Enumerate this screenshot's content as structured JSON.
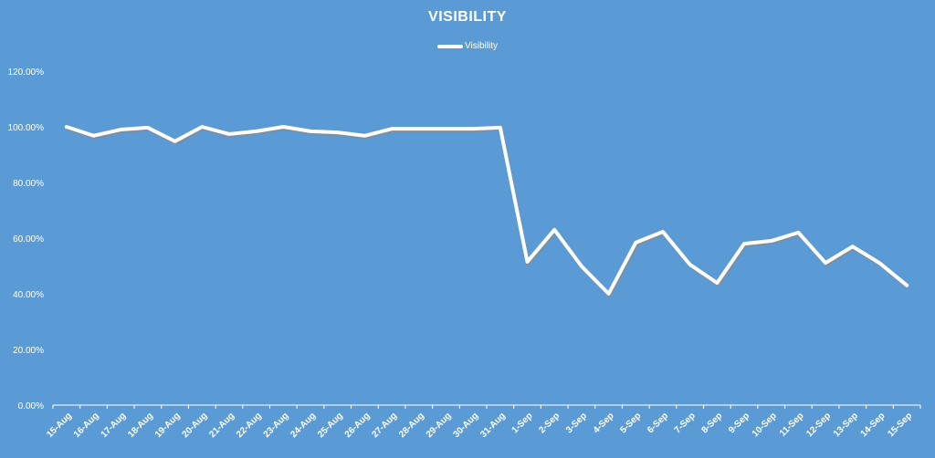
{
  "chart_data": {
    "type": "line",
    "title": "VISIBILITY",
    "xlabel": "",
    "ylabel": "",
    "ylim": [
      0,
      1.2
    ],
    "yticks": [
      "0.00%",
      "20.00%",
      "40.00%",
      "60.00%",
      "80.00%",
      "100.00%",
      "120.00%"
    ],
    "grid": false,
    "drop_lines": true,
    "legend_position": "top",
    "categories": [
      "15-Aug",
      "16-Aug",
      "17-Aug",
      "18-Aug",
      "19-Aug",
      "20-Aug",
      "21-Aug",
      "22-Aug",
      "23-Aug",
      "24-Aug",
      "25-Aug",
      "26-Aug",
      "27-Aug",
      "28-Aug",
      "29-Aug",
      "30-Aug",
      "31-Aug",
      "1-Sep",
      "2-Sep",
      "3-Sep",
      "4-Sep",
      "5-Sep",
      "6-Sep",
      "7-Sep",
      "8-Sep",
      "9-Sep",
      "10-Sep",
      "11-Sep",
      "12-Sep",
      "13-Sep",
      "14-Sep",
      "15-Sep"
    ],
    "series": [
      {
        "name": "Visibility",
        "color": "#ffffff",
        "values": [
          1.0,
          0.968,
          0.99,
          0.997,
          0.948,
          1.0,
          0.974,
          0.984,
          1.0,
          0.984,
          0.98,
          0.968,
          0.993,
          0.993,
          0.993,
          0.993,
          0.997,
          0.515,
          0.63,
          0.499,
          0.4,
          0.584,
          0.623,
          0.505,
          0.439,
          0.58,
          0.59,
          0.62,
          0.511,
          0.57,
          0.51,
          0.43
        ]
      }
    ]
  },
  "colors": {
    "background": "#5b9bd5",
    "line": "#ffffff",
    "shadow": "#8a8a8a"
  }
}
